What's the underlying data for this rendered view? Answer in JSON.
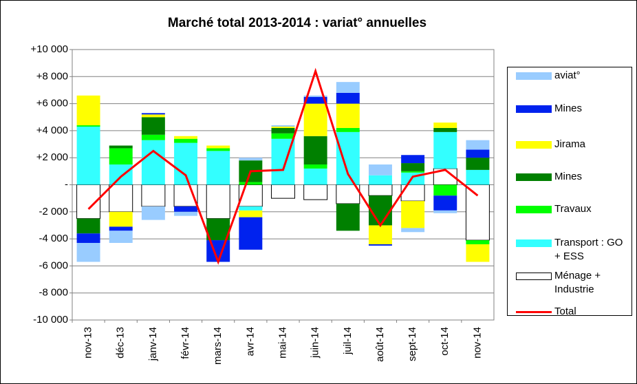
{
  "chart_data": {
    "type": "bar",
    "title": "Marché total 2013-2014 : variat° annuelles",
    "categories": [
      "nov-13",
      "déc-13",
      "janv-14",
      "févr-14",
      "mars-14",
      "avr-14",
      "mai-14",
      "juin-14",
      "juil-14",
      "août-14",
      "sept-14",
      "oct-14",
      "nov-14"
    ],
    "series": [
      {
        "name": "Ménage + Industrie",
        "color": "#ffffff",
        "values": [
          -2500,
          -2000,
          -1600,
          -1600,
          -2500,
          -1600,
          -1000,
          -1100,
          -1400,
          -800,
          -1200,
          1200,
          -4100
        ]
      },
      {
        "name": "Transport : GO + ESS",
        "color": "#33ffff",
        "values": [
          4300,
          1500,
          3300,
          3100,
          2500,
          -300,
          3400,
          1200,
          3900,
          700,
          900,
          2700,
          1100
        ]
      },
      {
        "name": "Travaux",
        "color": "#00ff00",
        "values": [
          100,
          1200,
          400,
          300,
          200,
          200,
          400,
          300,
          300,
          0,
          100,
          -800,
          -300
        ]
      },
      {
        "name": "Mines",
        "color": "#008000",
        "values": [
          -1100,
          200,
          1300,
          0,
          -1600,
          1600,
          400,
          2100,
          -2000,
          -2200,
          600,
          300,
          900
        ]
      },
      {
        "name": "Jirama",
        "color": "#ffff00",
        "values": [
          2200,
          -1100,
          200,
          200,
          200,
          -500,
          100,
          2400,
          1800,
          -1400,
          -2000,
          400,
          -1300
        ]
      },
      {
        "name": "Mines",
        "color": "#0022ee",
        "values": [
          -700,
          -300,
          100,
          -400,
          -1600,
          -2400,
          0,
          500,
          800,
          -100,
          600,
          -1100,
          600
        ]
      },
      {
        "name": "aviat°",
        "color": "#99ccff",
        "values": [
          -1400,
          -900,
          -1000,
          -300,
          0,
          200,
          100,
          100,
          800,
          800,
          -300,
          -200,
          700
        ]
      },
      {
        "name": "Total",
        "color": "#ff0000",
        "type": "line",
        "values": [
          -1800,
          600,
          2500,
          700,
          -5700,
          1000,
          1100,
          8400,
          800,
          -3000,
          600,
          1100,
          -800
        ]
      }
    ],
    "ylim": [
      -10000,
      10000
    ],
    "yticks": [
      {
        "value": -10000,
        "label": "-10 000"
      },
      {
        "value": -8000,
        "label": "-8 000"
      },
      {
        "value": -6000,
        "label": "-6 000"
      },
      {
        "value": -4000,
        "label": "-4 000"
      },
      {
        "value": -2000,
        "label": "-2 000"
      },
      {
        "value": 0,
        "label": "-"
      },
      {
        "value": 2000,
        "label": "+2 000"
      },
      {
        "value": 4000,
        "label": "+4 000"
      },
      {
        "value": 6000,
        "label": "+6 000"
      },
      {
        "value": 8000,
        "label": "+8 000"
      },
      {
        "value": 10000,
        "label": "+10 000"
      }
    ],
    "grid": true
  }
}
